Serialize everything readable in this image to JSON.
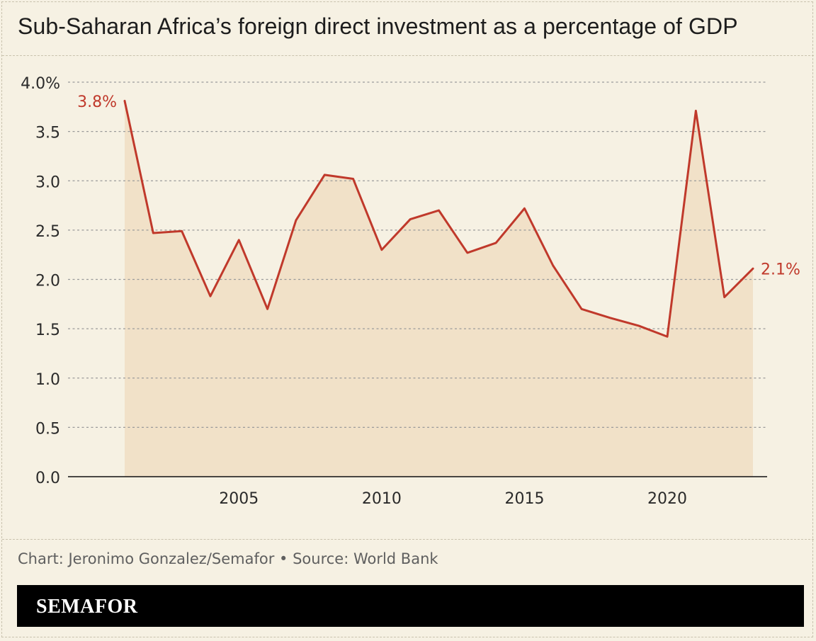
{
  "title": "Sub-Saharan Africa’s foreign direct investment as a percentage of GDP",
  "credit": "Chart: Jeronimo Gonzalez/Semafor • Source: World Bank",
  "brand": "SEMAFOR",
  "colors": {
    "background": "#f6f1e3",
    "line": "#c0392b",
    "area": "#f1e1c8",
    "grid": "#9a9a9a",
    "brand_bar": "#000000"
  },
  "chart_data": {
    "type": "area",
    "x": [
      2001,
      2002,
      2003,
      2004,
      2005,
      2006,
      2007,
      2008,
      2009,
      2010,
      2011,
      2012,
      2013,
      2014,
      2015,
      2016,
      2017,
      2018,
      2019,
      2020,
      2021,
      2022,
      2023
    ],
    "series": [
      {
        "values": [
          3.81,
          2.47,
          2.49,
          1.83,
          2.4,
          1.7,
          2.6,
          3.06,
          3.02,
          2.3,
          2.61,
          2.7,
          2.27,
          2.37,
          2.72,
          2.14,
          1.7,
          1.61,
          1.53,
          1.42,
          3.71,
          1.82,
          2.11
        ]
      }
    ],
    "ylim": [
      0,
      4.0
    ],
    "y_ticks": [
      0,
      0.5,
      1.0,
      1.5,
      2.0,
      2.5,
      3.0,
      3.5,
      4.0
    ],
    "y_tick_labels": [
      "0.0",
      "0.5",
      "1.0",
      "1.5",
      "2.0",
      "2.5",
      "3.0",
      "3.5",
      "4.0%"
    ],
    "x_ticks": [
      2005,
      2010,
      2015,
      2020
    ],
    "x_tick_labels": [
      "2005",
      "2010",
      "2015",
      "2020"
    ],
    "grid": true,
    "annotations": [
      {
        "x": 2001,
        "y": 3.8,
        "text": "3.8%"
      },
      {
        "x": 2023,
        "y": 2.1,
        "text": "2.1%"
      }
    ],
    "xlabel": "",
    "ylabel": ""
  }
}
